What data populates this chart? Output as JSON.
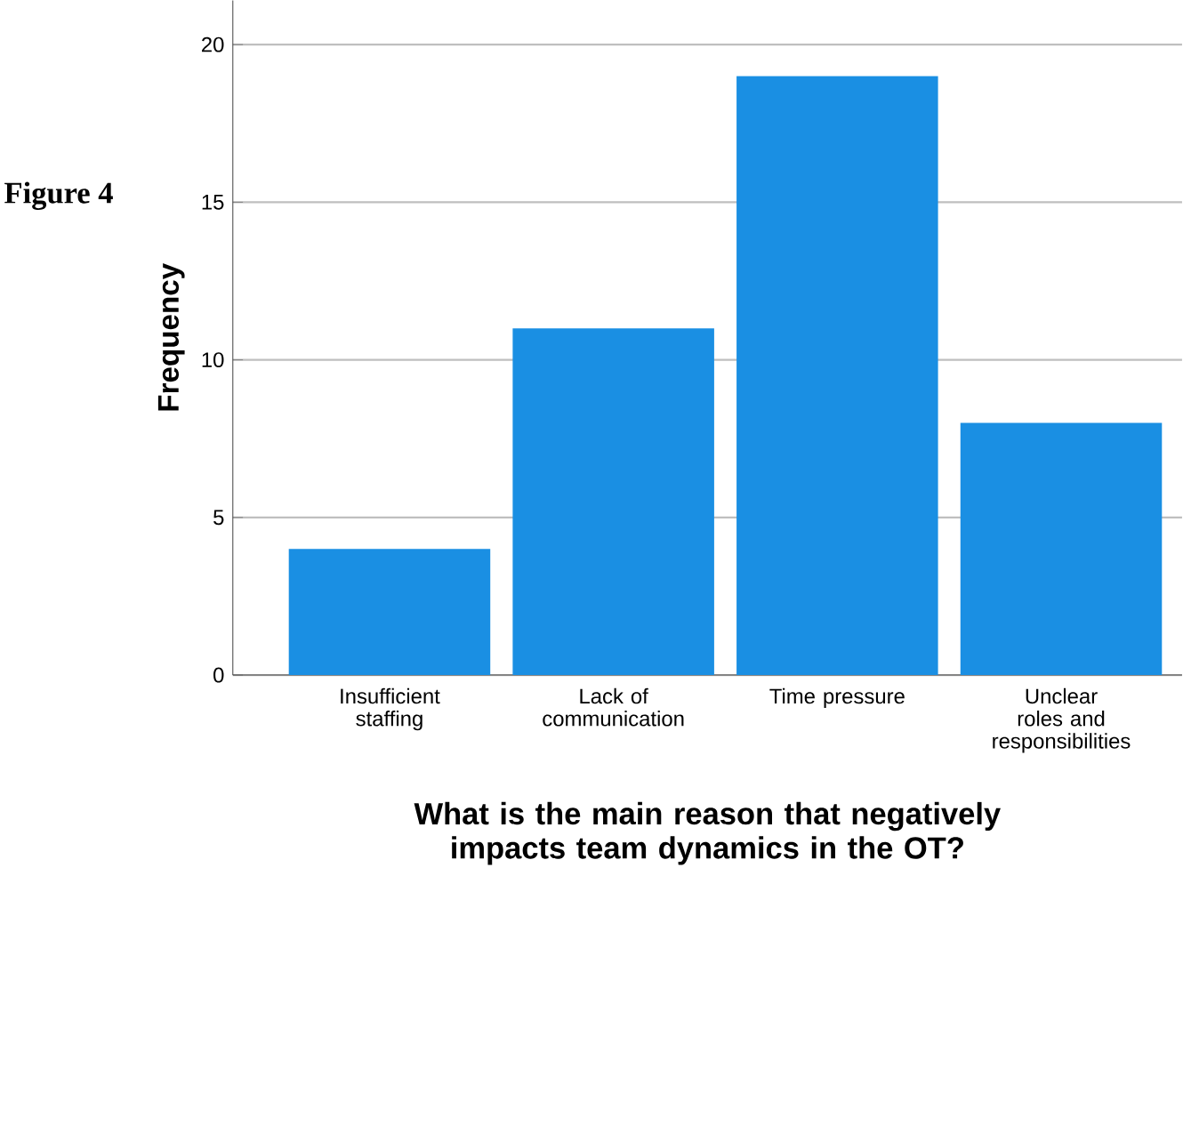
{
  "chart_data": {
    "type": "bar",
    "title": "Figure 4",
    "xlabel": "What is the main reason that negatively impacts team dynamics in the OT?",
    "ylabel": "Frequency",
    "categories": [
      "Insufficient staffing",
      "Lack of communication",
      "Time pressure",
      "Unclear roles and responsibilities"
    ],
    "values": [
      4,
      11,
      19,
      8
    ],
    "color": "#1a8fe3",
    "ylim": [
      0,
      21.4
    ],
    "yticks": [
      0,
      5,
      10,
      15,
      20
    ],
    "grid": "y"
  }
}
